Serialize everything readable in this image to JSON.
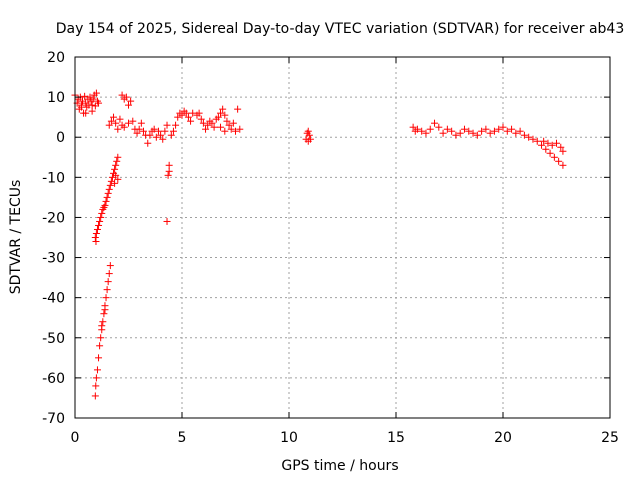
{
  "chart_data": {
    "type": "scatter",
    "title": "Day 154 of 2025, Sidereal Day-to-day VTEC variation (SDTVAR) for receiver ab43",
    "xlabel": "GPS time / hours",
    "ylabel": "SDTVAR / TECUs",
    "xlim": [
      0,
      25
    ],
    "ylim": [
      -70,
      20
    ],
    "xticks": [
      0,
      5,
      10,
      15,
      20,
      25
    ],
    "yticks": [
      20,
      10,
      0,
      -10,
      -20,
      -30,
      -40,
      -50,
      -60,
      -70
    ],
    "grid": true,
    "marker": "+",
    "color": "#ff0000",
    "series": [
      {
        "name": "SDTVAR",
        "points": [
          [
            0.0,
            10.5
          ],
          [
            0.1,
            8.5
          ],
          [
            0.15,
            9.5
          ],
          [
            0.2,
            7.0
          ],
          [
            0.25,
            10.0
          ],
          [
            0.3,
            8.0
          ],
          [
            0.35,
            9.0
          ],
          [
            0.4,
            6.0
          ],
          [
            0.45,
            10.2
          ],
          [
            0.5,
            8.5
          ],
          [
            0.55,
            7.5
          ],
          [
            0.6,
            9.5
          ],
          [
            0.65,
            8.0
          ],
          [
            0.7,
            10.0
          ],
          [
            0.75,
            9.0
          ],
          [
            0.8,
            8.0
          ],
          [
            0.85,
            9.5
          ],
          [
            0.9,
            10.5
          ],
          [
            0.95,
            7.8
          ],
          [
            1.0,
            11.0
          ],
          [
            1.05,
            9.0
          ],
          [
            1.1,
            8.5
          ],
          [
            0.5,
            6.0
          ],
          [
            0.3,
            7.5
          ],
          [
            0.8,
            6.5
          ],
          [
            0.95,
            -25.0
          ],
          [
            0.98,
            -26.0
          ],
          [
            1.0,
            -24.0
          ],
          [
            1.05,
            -23.0
          ],
          [
            1.1,
            -22.0
          ],
          [
            1.15,
            -21.0
          ],
          [
            1.2,
            -20.0
          ],
          [
            1.25,
            -19.0
          ],
          [
            1.3,
            -18.0
          ],
          [
            1.35,
            -17.5
          ],
          [
            1.4,
            -17.0
          ],
          [
            1.45,
            -16.0
          ],
          [
            1.5,
            -15.0
          ],
          [
            1.55,
            -14.0
          ],
          [
            1.6,
            -13.0
          ],
          [
            1.65,
            -12.0
          ],
          [
            1.7,
            -11.0
          ],
          [
            1.75,
            -10.0
          ],
          [
            1.8,
            -9.0
          ],
          [
            1.85,
            -8.0
          ],
          [
            1.9,
            -7.0
          ],
          [
            1.95,
            -6.0
          ],
          [
            2.0,
            -5.0
          ],
          [
            1.85,
            -11.5
          ],
          [
            1.9,
            -9.5
          ],
          [
            2.0,
            -10.5
          ],
          [
            0.95,
            -64.5
          ],
          [
            0.97,
            -62.0
          ],
          [
            1.0,
            -60.0
          ],
          [
            1.05,
            -58.0
          ],
          [
            1.1,
            -55.0
          ],
          [
            1.15,
            -52.0
          ],
          [
            1.2,
            -50.0
          ],
          [
            1.25,
            -48.0
          ],
          [
            1.3,
            -46.0
          ],
          [
            1.35,
            -44.0
          ],
          [
            1.4,
            -42.0
          ],
          [
            1.45,
            -40.0
          ],
          [
            1.5,
            -38.0
          ],
          [
            1.55,
            -36.0
          ],
          [
            1.6,
            -34.0
          ],
          [
            1.65,
            -32.0
          ],
          [
            1.25,
            -47.0
          ],
          [
            1.4,
            -43.0
          ],
          [
            1.6,
            3.0
          ],
          [
            1.7,
            4.0
          ],
          [
            1.8,
            5.0
          ],
          [
            1.9,
            3.5
          ],
          [
            2.0,
            2.0
          ],
          [
            2.1,
            4.5
          ],
          [
            2.2,
            10.5
          ],
          [
            2.3,
            9.5
          ],
          [
            2.4,
            10.0
          ],
          [
            2.5,
            8.0
          ],
          [
            2.6,
            9.0
          ],
          [
            2.2,
            3.0
          ],
          [
            2.3,
            2.5
          ],
          [
            2.5,
            3.5
          ],
          [
            2.7,
            4.0
          ],
          [
            2.8,
            2.0
          ],
          [
            2.9,
            1.0
          ],
          [
            3.0,
            2.0
          ],
          [
            3.1,
            3.5
          ],
          [
            3.2,
            1.5
          ],
          [
            3.3,
            0.5
          ],
          [
            3.4,
            -1.5
          ],
          [
            3.5,
            0.5
          ],
          [
            3.6,
            1.5
          ],
          [
            3.7,
            2.0
          ],
          [
            3.8,
            0.0
          ],
          [
            3.9,
            1.5
          ],
          [
            4.0,
            0.5
          ],
          [
            4.1,
            -0.5
          ],
          [
            4.2,
            1.5
          ],
          [
            4.3,
            3.0
          ],
          [
            4.4,
            -7.0
          ],
          [
            4.35,
            -9.5
          ],
          [
            4.3,
            -21.0
          ],
          [
            4.4,
            -8.5
          ],
          [
            4.5,
            0.5
          ],
          [
            4.6,
            1.5
          ],
          [
            4.7,
            3.0
          ],
          [
            4.8,
            5.0
          ],
          [
            4.9,
            6.0
          ],
          [
            5.0,
            5.5
          ],
          [
            5.1,
            6.5
          ],
          [
            5.2,
            6.0
          ],
          [
            5.3,
            5.0
          ],
          [
            5.4,
            4.0
          ],
          [
            5.5,
            6.0
          ],
          [
            5.7,
            5.5
          ],
          [
            5.8,
            6.0
          ],
          [
            5.9,
            4.5
          ],
          [
            6.0,
            3.5
          ],
          [
            6.1,
            2.0
          ],
          [
            6.2,
            3.0
          ],
          [
            6.3,
            4.0
          ],
          [
            6.4,
            3.5
          ],
          [
            6.5,
            2.5
          ],
          [
            6.6,
            4.5
          ],
          [
            6.7,
            5.0
          ],
          [
            6.8,
            6.0
          ],
          [
            6.9,
            7.0
          ],
          [
            7.0,
            5.5
          ],
          [
            7.1,
            4.0
          ],
          [
            7.2,
            3.0
          ],
          [
            7.3,
            2.0
          ],
          [
            7.4,
            3.5
          ],
          [
            7.5,
            1.5
          ],
          [
            7.6,
            7.0
          ],
          [
            7.7,
            2.0
          ],
          [
            6.8,
            2.5
          ],
          [
            7.0,
            1.5
          ],
          [
            10.8,
            -0.5
          ],
          [
            10.85,
            1.0
          ],
          [
            10.9,
            1.5
          ],
          [
            10.95,
            0.5
          ],
          [
            11.0,
            -0.5
          ],
          [
            10.9,
            -1.0
          ],
          [
            15.8,
            2.5
          ],
          [
            15.9,
            1.5
          ],
          [
            16.0,
            2.0
          ],
          [
            16.2,
            1.5
          ],
          [
            16.4,
            1.0
          ],
          [
            16.6,
            2.0
          ],
          [
            16.8,
            3.5
          ],
          [
            17.0,
            2.5
          ],
          [
            17.2,
            1.0
          ],
          [
            17.4,
            2.0
          ],
          [
            17.6,
            1.5
          ],
          [
            17.8,
            0.5
          ],
          [
            18.0,
            1.0
          ],
          [
            18.2,
            2.0
          ],
          [
            18.4,
            1.5
          ],
          [
            18.6,
            1.0
          ],
          [
            18.8,
            0.5
          ],
          [
            19.0,
            1.5
          ],
          [
            19.2,
            2.0
          ],
          [
            19.4,
            1.0
          ],
          [
            19.6,
            1.5
          ],
          [
            19.8,
            2.0
          ],
          [
            20.0,
            2.5
          ],
          [
            20.2,
            1.5
          ],
          [
            20.4,
            2.0
          ],
          [
            20.6,
            1.0
          ],
          [
            20.8,
            1.5
          ],
          [
            21.0,
            0.5
          ],
          [
            21.2,
            0.0
          ],
          [
            21.4,
            -0.5
          ],
          [
            21.6,
            -1.0
          ],
          [
            21.8,
            -2.0
          ],
          [
            22.0,
            -3.0
          ],
          [
            22.2,
            -4.0
          ],
          [
            22.4,
            -5.0
          ],
          [
            22.6,
            -6.0
          ],
          [
            22.8,
            -7.0
          ],
          [
            21.9,
            -1.0
          ],
          [
            22.1,
            -1.5
          ],
          [
            22.3,
            -2.0
          ],
          [
            22.5,
            -1.5
          ],
          [
            22.7,
            -2.5
          ],
          [
            22.8,
            -3.5
          ]
        ]
      }
    ]
  }
}
